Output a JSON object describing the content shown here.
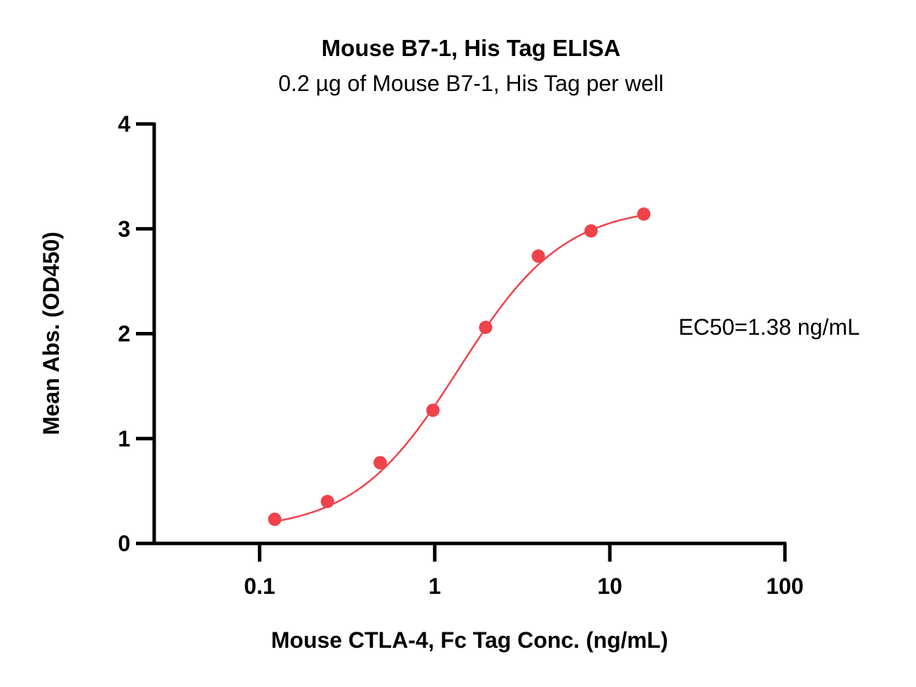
{
  "chart_data": {
    "type": "scatter",
    "title": "Mouse B7-1, His Tag ELISA",
    "subtitle": "0.2 µg of Mouse B7-1, His Tag per well",
    "xlabel": "Mouse CTLA-4, Fc Tag Conc. (ng/mL)",
    "ylabel": "Mean Abs. (OD450)",
    "x_scale": "log",
    "xlim": [
      0.025,
      100
    ],
    "ylim": [
      0,
      4
    ],
    "x_ticks": [
      {
        "value": 0.1,
        "label": "0.1"
      },
      {
        "value": 1,
        "label": "1"
      },
      {
        "value": 10,
        "label": "10"
      },
      {
        "value": 100,
        "label": "100"
      }
    ],
    "y_ticks": [
      {
        "value": 0,
        "label": "0"
      },
      {
        "value": 1,
        "label": "1"
      },
      {
        "value": 2,
        "label": "2"
      },
      {
        "value": 3,
        "label": "3"
      },
      {
        "value": 4,
        "label": "4"
      }
    ],
    "grid": false,
    "series": [
      {
        "color": "#f0424a",
        "x": [
          0.122,
          0.244,
          0.488,
          0.977,
          1.953,
          3.906,
          7.813,
          15.625
        ],
        "y": [
          0.23,
          0.4,
          0.77,
          1.27,
          2.06,
          2.74,
          2.98,
          3.14
        ],
        "fit": {
          "model": "4PL",
          "bottom": 0.12,
          "top": 3.22,
          "ec50": 1.38,
          "hill": 1.45
        }
      }
    ],
    "annotations": [
      {
        "text": "EC50=1.38 ng/mL"
      }
    ]
  }
}
